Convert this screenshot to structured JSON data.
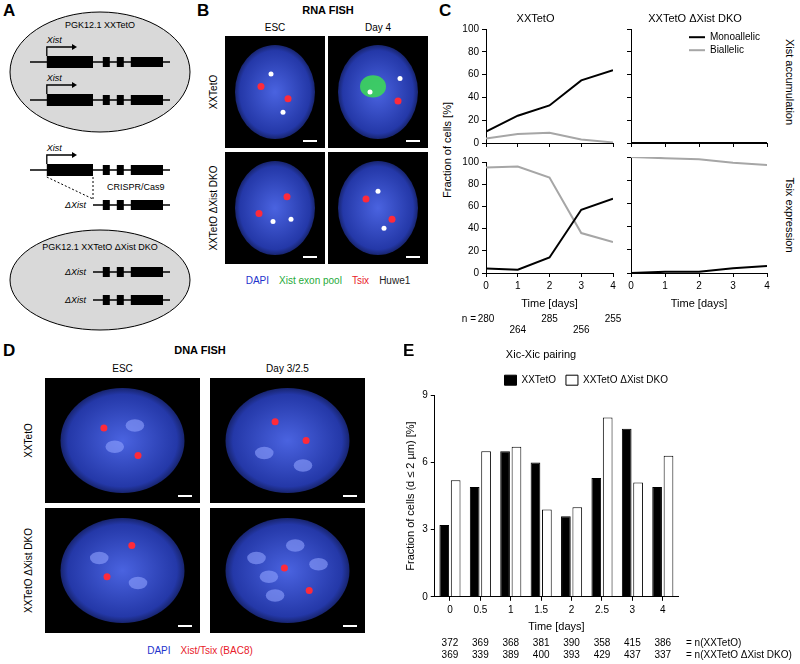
{
  "panels": {
    "A": {
      "label": "A",
      "top_cell": {
        "title": "PGK12.1 XXTetO",
        "genes": [
          "Xist",
          "Xist"
        ]
      },
      "editing": {
        "gene": "Xist",
        "tool": "CRISPR/Cas9",
        "result": "ΔXist"
      },
      "bottom_cell": {
        "title": "PGK12.1 XXTetO ΔXist DKO",
        "genes": [
          "ΔXist",
          "ΔXist"
        ]
      }
    },
    "B": {
      "label": "B",
      "title": "RNA FISH",
      "columns": [
        "ESC",
        "Day 4"
      ],
      "rows": [
        "XXTetO",
        "XXTetO ΔXist DKO"
      ],
      "legend": [
        {
          "text": "DAPI",
          "color": "#2233cc"
        },
        {
          "text": "Xist exon pool",
          "color": "#1faa3a"
        },
        {
          "text": "Tsix",
          "color": "#e8202a"
        },
        {
          "text": "Huwe1",
          "color": "#222222"
        }
      ]
    },
    "C": {
      "label": "C",
      "ylabel": "Fraction of cells [%]",
      "row_titles": [
        "Xist accumulation",
        "Tsix expression"
      ],
      "n_label": "n =",
      "n": [
        280,
        264,
        285,
        256,
        255
      ]
    },
    "D": {
      "label": "D",
      "title": "DNA FISH",
      "columns": [
        "ESC",
        "Day 3/2.5"
      ],
      "rows": [
        "XXTetO",
        "XXTetO ΔXist DKO"
      ],
      "legend": [
        {
          "text": "DAPI",
          "color": "#2233cc"
        },
        {
          "text": "Xist/Tsix (BAC8)",
          "color": "#e8202a"
        }
      ]
    },
    "E": {
      "label": "E",
      "n_rows": [
        {
          "values": [
            372,
            369,
            368,
            381,
            390,
            358,
            415,
            386
          ],
          "label": "= n(XXTetO)"
        },
        {
          "values": [
            369,
            339,
            389,
            400,
            393,
            429,
            437,
            337
          ],
          "label": "= n(XXTetO ΔXist DKO)"
        }
      ]
    }
  },
  "chart_data": [
    {
      "type": "line",
      "title": "XXTetO",
      "x": [
        0,
        1,
        2,
        3,
        4
      ],
      "series": [
        {
          "color": "#000000",
          "values": [
            10,
            24,
            33,
            55,
            64
          ]
        },
        {
          "color": "#a6a6a6",
          "values": [
            4,
            8,
            9,
            3,
            0.5
          ]
        }
      ],
      "xlim": [
        0,
        4
      ],
      "xticks": [
        0,
        1,
        2,
        3,
        4
      ],
      "ylim": [
        0,
        100
      ],
      "yticks": [
        0,
        20,
        40,
        60,
        80,
        100
      ],
      "grid": false,
      "tick_labels": "y"
    },
    {
      "type": "line",
      "title": "XXTetO ΔXist DKO",
      "x": [
        0,
        1,
        2,
        3,
        4
      ],
      "series": [
        {
          "name": "Monoallelic",
          "color": "#000000",
          "values": [
            0,
            0,
            0,
            0,
            0
          ]
        },
        {
          "name": "Biallelic",
          "color": "#a6a6a6",
          "values": [
            0,
            0,
            0,
            0,
            0
          ]
        }
      ],
      "xlim": [
        0,
        4
      ],
      "xticks": [
        0,
        1,
        2,
        3,
        4
      ],
      "ylim": [
        0,
        100
      ],
      "yticks": [
        0,
        20,
        40,
        60,
        80,
        100
      ],
      "grid": false,
      "tick_labels": false,
      "legend": "upper right"
    },
    {
      "type": "line",
      "xlabel": "Time [days]",
      "x": [
        0,
        1,
        2,
        3,
        4
      ],
      "series": [
        {
          "color": "#000000",
          "values": [
            4,
            3,
            14,
            57,
            67
          ]
        },
        {
          "color": "#a6a6a6",
          "values": [
            95,
            96,
            86,
            36,
            28
          ]
        }
      ],
      "xlim": [
        0,
        4
      ],
      "xticks": [
        0,
        1,
        2,
        3,
        4
      ],
      "ylim": [
        0,
        100
      ],
      "yticks": [
        0,
        20,
        40,
        60,
        80,
        100
      ],
      "grid": false,
      "tick_labels": true
    },
    {
      "type": "line",
      "xlabel": "Time [days]",
      "x": [
        0,
        1,
        2,
        3,
        4
      ],
      "series": [
        {
          "color": "#000000",
          "values": [
            0,
            1,
            1,
            4,
            6
          ]
        },
        {
          "color": "#a6a6a6",
          "values": [
            100,
            99,
            98,
            95,
            93
          ]
        }
      ],
      "xlim": [
        0,
        4
      ],
      "xticks": [
        0,
        1,
        2,
        3,
        4
      ],
      "ylim": [
        0,
        100
      ],
      "yticks": [
        0,
        20,
        40,
        60,
        80,
        100
      ],
      "grid": false,
      "tick_labels": "x"
    },
    {
      "type": "bar",
      "title": "Xic-Xic pairing",
      "xlabel": "Time [days]",
      "ylabel": "Fraction of cells (d ≤ 2 µm) [%]",
      "categories": [
        "0",
        "0.5",
        "1",
        "1.5",
        "2",
        "2.5",
        "3",
        "4"
      ],
      "series": [
        {
          "name": "XXTetO",
          "color": "#000000",
          "values": [
            3.2,
            4.9,
            6.5,
            6.0,
            3.6,
            5.3,
            7.5,
            4.9
          ]
        },
        {
          "name": "XXTetO ΔXist DKO",
          "color": "#ffffff",
          "values": [
            5.2,
            6.5,
            6.7,
            3.9,
            4.0,
            8.0,
            5.1,
            6.3
          ]
        }
      ],
      "ylim": [
        0,
        9
      ],
      "yticks": [
        0,
        3,
        6,
        9
      ],
      "grid": false,
      "legend": "upper right"
    }
  ]
}
